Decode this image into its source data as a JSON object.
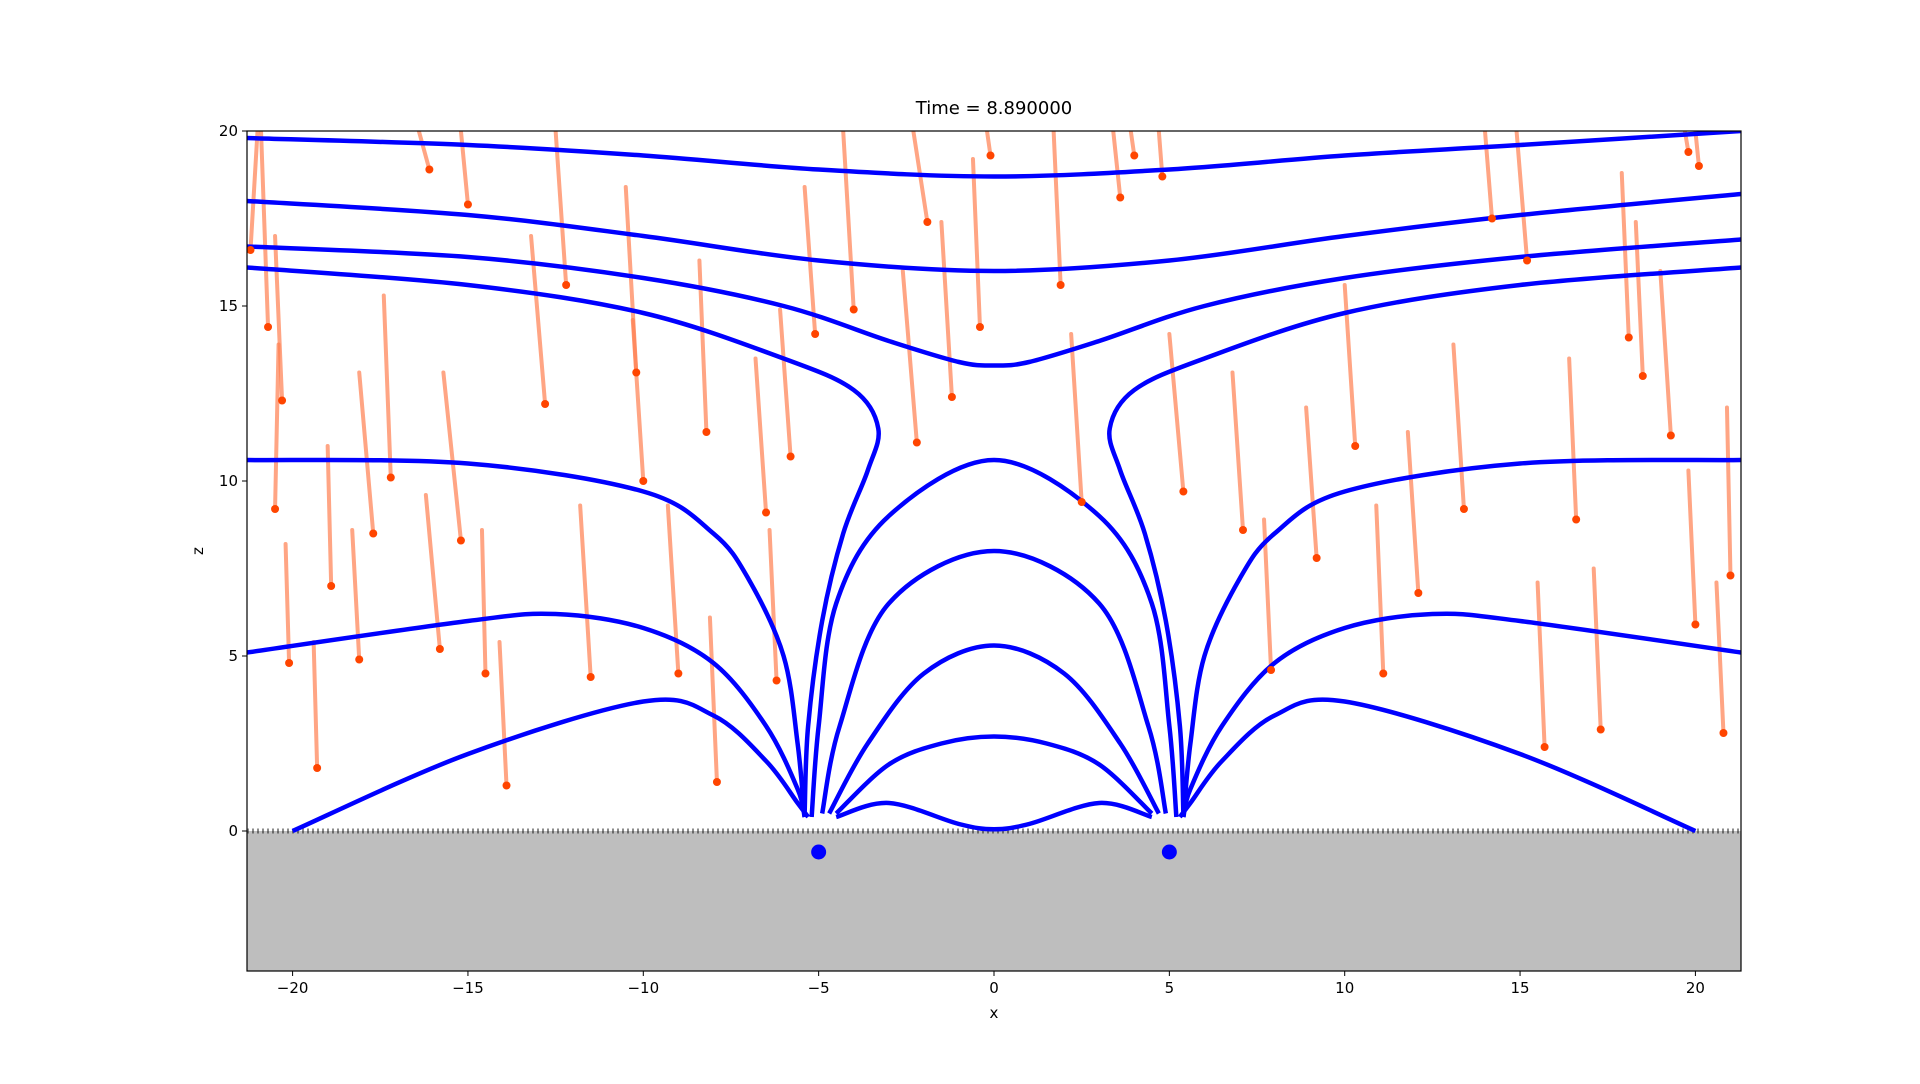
{
  "chart_data": {
    "type": "line",
    "title": "Time = 8.890000",
    "x_label": "x",
    "y_label": "z",
    "xlim": [
      -21.3,
      21.3
    ],
    "ylim": [
      -4,
      20
    ],
    "xticks": [
      {
        "value": -20,
        "label": "−20"
      },
      {
        "value": -15,
        "label": "−15"
      },
      {
        "value": -10,
        "label": "−10"
      },
      {
        "value": -5,
        "label": "−5"
      },
      0,
      5,
      10,
      15,
      20
    ],
    "yticks": [
      0,
      5,
      10,
      15,
      20
    ],
    "grid": false,
    "ground_level": 0,
    "ground_color": "#bebebe",
    "sources": {
      "color": "#0000ff",
      "x": [
        -5,
        5
      ],
      "values": [
        -0.6,
        -0.6
      ]
    },
    "series": [
      {
        "color": "#0000ff",
        "x": [
          -21.3,
          -15,
          -10,
          -5,
          0,
          5,
          10,
          15,
          21.3
        ],
        "values": [
          19.8,
          19.6,
          19.3,
          18.9,
          18.7,
          18.9,
          19.3,
          19.6,
          20.0
        ]
      },
      {
        "color": "#0000ff",
        "x": [
          -21.3,
          -15,
          -10,
          -5,
          0,
          5,
          10,
          15,
          21.3
        ],
        "values": [
          18.0,
          17.6,
          17.0,
          16.3,
          16.0,
          16.3,
          17.0,
          17.6,
          18.2
        ]
      },
      {
        "color": "#0000ff",
        "x": [
          -21.3,
          -15,
          -10,
          -6,
          -3,
          -1,
          0,
          1,
          3,
          6,
          10,
          15,
          21.3
        ],
        "values": [
          16.7,
          16.4,
          15.8,
          15.0,
          14.0,
          13.4,
          13.3,
          13.4,
          14.0,
          15.0,
          15.8,
          16.4,
          16.9
        ]
      },
      {
        "color": "#0000ff",
        "x": [
          -21.3,
          -15,
          -10,
          -6,
          -4,
          -3.3,
          -3.6,
          -4.3,
          -4.9,
          -5.3,
          -5.4
        ],
        "values": [
          16.1,
          15.6,
          14.8,
          13.5,
          12.6,
          11.5,
          10.3,
          8.5,
          6.0,
          3.0,
          0.5
        ]
      },
      {
        "color": "#0000ff",
        "x": [
          21.3,
          15,
          10,
          6,
          4,
          3.3,
          3.6,
          4.3,
          4.9,
          5.3,
          5.4
        ],
        "values": [
          16.1,
          15.6,
          14.8,
          13.5,
          12.6,
          11.5,
          10.3,
          8.5,
          6.0,
          3.0,
          0.5
        ]
      },
      {
        "color": "#0000ff",
        "x": [
          -21.3,
          -15,
          -10,
          -8,
          -7,
          -6,
          -5.6,
          -5.4
        ],
        "values": [
          10.6,
          10.5,
          9.7,
          8.5,
          7.2,
          5.0,
          2.5,
          0.4
        ]
      },
      {
        "color": "#0000ff",
        "x": [
          21.3,
          15,
          10,
          8,
          7,
          6,
          5.6,
          5.4
        ],
        "values": [
          10.6,
          10.5,
          9.7,
          8.5,
          7.2,
          5.0,
          2.5,
          0.4
        ]
      },
      {
        "color": "#0000ff",
        "x": [
          -21.3,
          -15,
          -12.5,
          -10,
          -8,
          -6.5,
          -5.6,
          -5.4
        ],
        "values": [
          5.1,
          6.0,
          6.2,
          5.8,
          4.8,
          3.0,
          1.2,
          0.4
        ]
      },
      {
        "color": "#0000ff",
        "x": [
          21.3,
          15,
          12.5,
          10,
          8,
          6.5,
          5.6,
          5.4
        ],
        "values": [
          5.1,
          6.0,
          6.2,
          5.8,
          4.8,
          3.0,
          1.2,
          0.4
        ]
      },
      {
        "color": "#0000ff",
        "x": [
          -20,
          -15,
          -10,
          -8,
          -6.5,
          -5.6,
          -5.3
        ],
        "values": [
          0,
          2.2,
          3.7,
          3.3,
          2.0,
          0.8,
          0.4
        ]
      },
      {
        "color": "#0000ff",
        "x": [
          20,
          15,
          10,
          8,
          6.5,
          5.6,
          5.3
        ],
        "values": [
          0,
          2.2,
          3.7,
          3.3,
          2.0,
          0.8,
          0.4
        ]
      },
      {
        "color": "#0000ff",
        "x": [
          -5.2,
          -5.0,
          -4.5,
          -3,
          0,
          3,
          4.5,
          5.0,
          5.2
        ],
        "values": [
          0.4,
          3,
          6.5,
          9,
          10.6,
          9,
          6.5,
          3,
          0.4
        ]
      },
      {
        "color": "#0000ff",
        "x": [
          -4.9,
          -4.4,
          -3,
          0,
          3,
          4.4,
          4.9
        ],
        "values": [
          0.5,
          3,
          6.5,
          8,
          6.5,
          3,
          0.5
        ]
      },
      {
        "color": "#0000ff",
        "x": [
          -4.7,
          -3.6,
          -2,
          0,
          2,
          3.6,
          4.7
        ],
        "values": [
          0.5,
          2.5,
          4.5,
          5.3,
          4.5,
          2.5,
          0.5
        ]
      },
      {
        "color": "#0000ff",
        "x": [
          -4.5,
          -3,
          -1.5,
          0,
          1.5,
          3,
          4.5
        ],
        "values": [
          0.5,
          1.9,
          2.5,
          2.7,
          2.5,
          1.9,
          0.5
        ]
      },
      {
        "color": "#0000ff",
        "x": [
          -4.5,
          -3,
          -1,
          0,
          1,
          3,
          4.5
        ],
        "values": [
          0.4,
          0.8,
          0.2,
          0.05,
          0.2,
          0.8,
          0.4
        ]
      }
    ],
    "particles": {
      "color": "#ff7f50",
      "head_color": "#ff4500",
      "head_x": [
        -21.2,
        -20.7,
        -20.3,
        -20.5,
        -20.1,
        -19.3,
        -18.9,
        -18.1,
        -17.7,
        -17.2,
        -16.1,
        -15.8,
        -15.2,
        -15.0,
        -14.5,
        -13.9,
        -12.8,
        -12.2,
        -11.5,
        -10.2,
        -10.0,
        -9.0,
        -8.2,
        -7.9,
        -6.5,
        -6.2,
        -5.8,
        -5.1,
        -4.0,
        -2.2,
        -1.9,
        -1.2,
        -0.1,
        -0.4,
        1.9,
        2.5,
        3.6,
        4.0,
        4.8,
        5.4,
        7.1,
        7.9,
        9.2,
        10.3,
        11.1,
        12.1,
        13.4,
        14.2,
        15.2,
        15.7,
        16.6,
        17.3,
        18.1,
        18.5,
        19.3,
        19.8,
        20.0,
        20.8,
        21.0,
        20.1
      ],
      "head_z": [
        16.6,
        14.4,
        12.3,
        9.2,
        4.8,
        1.8,
        7.0,
        4.9,
        8.5,
        10.1,
        18.9,
        5.2,
        8.3,
        17.9,
        4.5,
        1.3,
        12.2,
        15.6,
        4.4,
        13.1,
        10.0,
        4.5,
        11.4,
        1.4,
        9.1,
        4.3,
        10.7,
        14.2,
        14.9,
        11.1,
        17.4,
        12.4,
        19.3,
        14.4,
        15.6,
        9.4,
        18.1,
        19.3,
        18.7,
        9.7,
        8.6,
        4.6,
        7.8,
        11.0,
        4.5,
        6.8,
        9.2,
        17.5,
        16.3,
        2.4,
        8.9,
        2.9,
        14.1,
        13.0,
        11.3,
        19.4,
        5.9,
        2.8,
        7.3,
        19.0
      ],
      "tail_x": [
        -21.0,
        -20.9,
        -20.5,
        -20.4,
        -20.2,
        -19.4,
        -19.0,
        -18.3,
        -18.1,
        -17.4,
        -16.4,
        -16.2,
        -15.7,
        -15.2,
        -14.6,
        -14.1,
        -13.2,
        -12.5,
        -11.8,
        -10.5,
        -10.3,
        -9.3,
        -8.4,
        -8.1,
        -6.8,
        -6.4,
        -6.1,
        -5.4,
        -4.3,
        -2.6,
        -2.3,
        -1.5,
        -0.2,
        -0.6,
        1.7,
        2.2,
        3.4,
        3.9,
        4.7,
        5.0,
        6.8,
        7.7,
        8.9,
        10.0,
        10.9,
        11.8,
        13.1,
        14.0,
        14.9,
        15.5,
        16.4,
        17.1,
        17.9,
        18.3,
        19.0,
        19.7,
        19.8,
        20.6,
        20.9,
        20.0
      ],
      "tail_z": [
        20,
        20,
        17.0,
        13.9,
        8.2,
        5.4,
        11.0,
        8.6,
        13.1,
        15.3,
        20,
        9.6,
        13.1,
        20,
        8.6,
        5.4,
        17.0,
        20,
        9.3,
        18.4,
        14.6,
        9.3,
        16.3,
        6.1,
        13.5,
        8.6,
        14.9,
        18.4,
        20,
        16.0,
        20,
        17.4,
        20,
        19.2,
        20,
        14.2,
        20,
        20,
        20,
        14.2,
        13.1,
        8.9,
        12.1,
        15.6,
        9.3,
        11.4,
        13.9,
        20,
        20,
        7.1,
        13.5,
        7.5,
        18.8,
        17.4,
        16.0,
        20,
        10.3,
        7.1,
        12.1,
        20
      ]
    }
  }
}
